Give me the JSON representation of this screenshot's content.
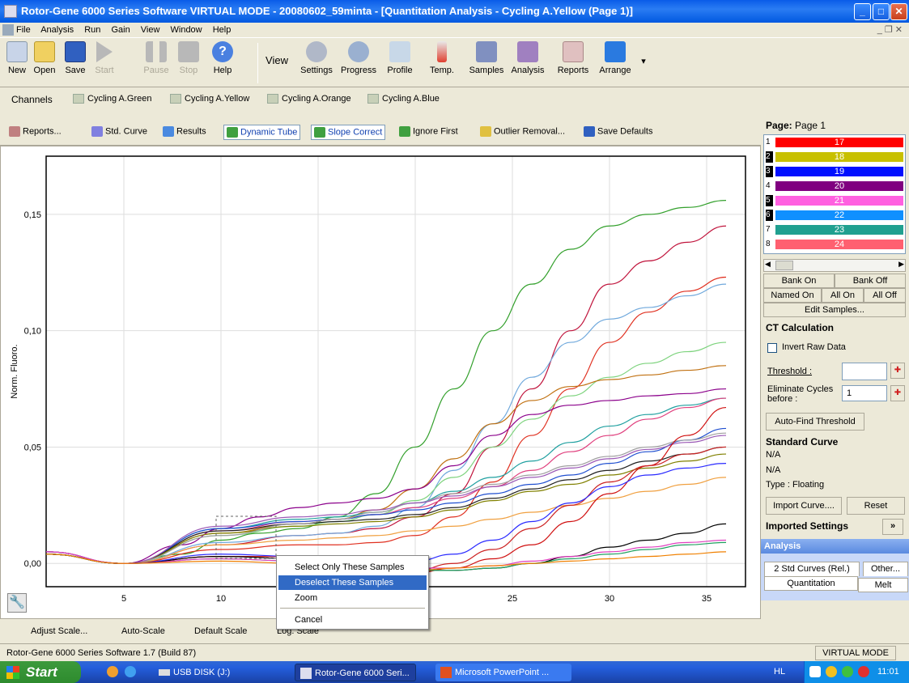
{
  "window": {
    "title": "Rotor-Gene 6000 Series Software VIRTUAL MODE - 20080602_59minta - [Quantitation Analysis - Cycling A.Yellow (Page 1)]"
  },
  "menu": [
    "File",
    "Analysis",
    "Run",
    "Gain",
    "View",
    "Window",
    "Help"
  ],
  "toolbar": {
    "new": "New",
    "open": "Open",
    "save": "Save",
    "start": "Start",
    "pause": "Pause",
    "stop": "Stop",
    "help": "Help",
    "view": "View",
    "settings": "Settings",
    "progress": "Progress",
    "profile": "Profile",
    "temp": "Temp.",
    "samples": "Samples",
    "analysis": "Analysis",
    "reports": "Reports",
    "arrange": "Arrange"
  },
  "channels": {
    "label": "Channels",
    "items": [
      "Cycling A.Green",
      "Cycling A.Yellow",
      "Cycling A.Orange",
      "Cycling A.Blue"
    ]
  },
  "analysis_toolbar": {
    "reports": "Reports...",
    "std_curve": "Std. Curve",
    "results": "Results",
    "dynamic_tube": "Dynamic Tube",
    "slope_correct": "Slope Correct",
    "ignore_first": "Ignore First",
    "outlier_removal": "Outlier Removal...",
    "save_defaults": "Save Defaults"
  },
  "chart_data": {
    "type": "line",
    "ylabel": "Norm. Fluoro.",
    "xlim": [
      1,
      37
    ],
    "ylim": [
      -0.01,
      0.175
    ],
    "x_ticks": [
      "5",
      "10",
      "15",
      "20",
      "25",
      "30",
      "35"
    ],
    "y_ticks": [
      "0,00",
      "0,05",
      "0,10",
      "0,15"
    ],
    "grid": true,
    "series": [
      {
        "color": "#33a02c",
        "x": [
          1,
          5,
          8,
          10,
          12,
          14,
          16,
          18,
          20,
          22,
          24,
          26,
          28,
          30,
          32,
          34,
          36
        ],
        "y": [
          0.005,
          0.0,
          0.004,
          0.01,
          0.013,
          0.015,
          0.02,
          0.03,
          0.05,
          0.075,
          0.1,
          0.12,
          0.135,
          0.145,
          0.15,
          0.153,
          0.156
        ]
      },
      {
        "color": "#c0143c",
        "x": [
          1,
          5,
          10,
          14,
          16,
          18,
          20,
          22,
          24,
          26,
          28,
          30,
          32,
          34,
          36
        ],
        "y": [
          0.004,
          0.0,
          0.008,
          0.012,
          0.013,
          0.015,
          0.02,
          0.03,
          0.05,
          0.075,
          0.1,
          0.12,
          0.13,
          0.138,
          0.145
        ]
      },
      {
        "color": "#e03020",
        "x": [
          1,
          5,
          10,
          14,
          16,
          18,
          20,
          22,
          24,
          26,
          28,
          30,
          32,
          34,
          36
        ],
        "y": [
          0.004,
          0.0,
          0.006,
          0.008,
          0.008,
          0.009,
          0.012,
          0.02,
          0.035,
          0.055,
          0.075,
          0.095,
          0.108,
          0.117,
          0.123
        ]
      },
      {
        "color": "#6fa8dc",
        "x": [
          1,
          5,
          10,
          14,
          16,
          18,
          20,
          22,
          24,
          26,
          28,
          30,
          32,
          34,
          36
        ],
        "y": [
          0.004,
          0.0,
          0.009,
          0.012,
          0.013,
          0.016,
          0.024,
          0.04,
          0.06,
          0.08,
          0.095,
          0.105,
          0.11,
          0.115,
          0.12
        ]
      },
      {
        "color": "#7dd37d",
        "x": [
          1,
          5,
          10,
          14,
          16,
          18,
          20,
          22,
          24,
          26,
          28,
          30,
          32,
          34,
          36
        ],
        "y": [
          0.004,
          0.0,
          0.012,
          0.016,
          0.018,
          0.021,
          0.027,
          0.037,
          0.05,
          0.062,
          0.072,
          0.08,
          0.086,
          0.091,
          0.095
        ]
      },
      {
        "color": "#c07010",
        "x": [
          1,
          5,
          10,
          14,
          16,
          18,
          20,
          22,
          24,
          26,
          28,
          30,
          32,
          34,
          36
        ],
        "y": [
          0.005,
          0.0,
          0.013,
          0.017,
          0.019,
          0.023,
          0.032,
          0.045,
          0.06,
          0.07,
          0.076,
          0.079,
          0.081,
          0.083,
          0.085
        ]
      },
      {
        "color": "#8b008b",
        "x": [
          1,
          5,
          8,
          10,
          12,
          14,
          16,
          18,
          20,
          22,
          24,
          26,
          28,
          30,
          32,
          34,
          36
        ],
        "y": [
          0.004,
          0.0,
          0.008,
          0.015,
          0.02,
          0.024,
          0.026,
          0.028,
          0.032,
          0.042,
          0.055,
          0.064,
          0.068,
          0.07,
          0.072,
          0.073,
          0.075
        ]
      },
      {
        "color": "#20a0a0",
        "x": [
          1,
          5,
          10,
          14,
          16,
          18,
          20,
          22,
          24,
          26,
          28,
          30,
          32,
          34,
          36
        ],
        "y": [
          0.004,
          0.0,
          0.015,
          0.019,
          0.02,
          0.022,
          0.026,
          0.031,
          0.037,
          0.044,
          0.052,
          0.059,
          0.064,
          0.068,
          0.071
        ]
      },
      {
        "color": "#e0407e",
        "x": [
          1,
          5,
          10,
          14,
          16,
          18,
          20,
          22,
          24,
          26,
          28,
          30,
          32,
          34,
          36
        ],
        "y": [
          0.005,
          0.0,
          0.014,
          0.018,
          0.019,
          0.021,
          0.024,
          0.028,
          0.033,
          0.04,
          0.048,
          0.055,
          0.062,
          0.067,
          0.071
        ]
      },
      {
        "color": "#1f4fd0",
        "x": [
          1,
          5,
          10,
          14,
          16,
          18,
          20,
          22,
          24,
          26,
          28,
          30,
          32,
          34,
          36
        ],
        "y": [
          0.005,
          0.0,
          0.015,
          0.018,
          0.019,
          0.021,
          0.023,
          0.026,
          0.03,
          0.034,
          0.038,
          0.043,
          0.048,
          0.053,
          0.058
        ]
      },
      {
        "color": "#222222",
        "x": [
          1,
          5,
          10,
          14,
          16,
          18,
          20,
          22,
          24,
          26,
          28,
          30,
          32,
          34,
          36
        ],
        "y": [
          0.004,
          0.0,
          0.014,
          0.017,
          0.018,
          0.019,
          0.021,
          0.024,
          0.028,
          0.032,
          0.036,
          0.04,
          0.044,
          0.047,
          0.05
        ]
      },
      {
        "color": "#808000",
        "x": [
          1,
          5,
          10,
          14,
          16,
          18,
          20,
          22,
          24,
          26,
          28,
          30,
          32,
          34,
          36
        ],
        "y": [
          0.004,
          0.0,
          0.013,
          0.016,
          0.017,
          0.018,
          0.02,
          0.023,
          0.027,
          0.031,
          0.034,
          0.038,
          0.041,
          0.044,
          0.047
        ]
      },
      {
        "color": "#a0a0a0",
        "x": [
          1,
          5,
          10,
          14,
          16,
          18,
          20,
          22,
          24,
          26,
          28,
          30,
          32,
          34,
          36
        ],
        "y": [
          0.004,
          0.0,
          0.012,
          0.017,
          0.019,
          0.022,
          0.026,
          0.03,
          0.034,
          0.038,
          0.042,
          0.046,
          0.05,
          0.053,
          0.056
        ]
      },
      {
        "color": "#f0a040",
        "x": [
          1,
          5,
          10,
          14,
          16,
          18,
          20,
          22,
          24,
          26,
          28,
          30,
          32,
          34,
          36
        ],
        "y": [
          0.004,
          0.0,
          0.008,
          0.01,
          0.011,
          0.012,
          0.014,
          0.016,
          0.019,
          0.022,
          0.025,
          0.028,
          0.031,
          0.034,
          0.037
        ]
      },
      {
        "color": "#9b59b6",
        "x": [
          1,
          5,
          10,
          14,
          16,
          18,
          20,
          22,
          24,
          26,
          28,
          30,
          32,
          34,
          36
        ],
        "y": [
          0.005,
          0.0,
          0.016,
          0.02,
          0.021,
          0.023,
          0.026,
          0.029,
          0.033,
          0.037,
          0.041,
          0.045,
          0.049,
          0.052,
          0.055
        ]
      },
      {
        "color": "#d01010",
        "x": [
          1,
          5,
          10,
          14,
          16,
          18,
          20,
          22,
          24,
          26,
          28,
          30,
          32,
          34,
          36
        ],
        "y": [
          0.004,
          0.0,
          0.003,
          0.003,
          0.0,
          -0.003,
          -0.004,
          -0.002,
          0.002,
          0.008,
          0.018,
          0.03,
          0.042,
          0.055,
          0.067
        ]
      },
      {
        "color": "#cc2222",
        "x": [
          1,
          5,
          10,
          14,
          16,
          18,
          20,
          22,
          24,
          26,
          28,
          30,
          32,
          34,
          36
        ],
        "y": [
          0.004,
          0.0,
          0.003,
          0.003,
          0.001,
          -0.002,
          -0.003,
          0.0,
          0.006,
          0.015,
          0.025,
          0.035,
          0.042,
          0.047,
          0.05
        ]
      },
      {
        "color": "#2a2aff",
        "x": [
          1,
          5,
          10,
          14,
          16,
          18,
          20,
          22,
          24,
          26,
          28,
          30,
          32,
          34,
          36
        ],
        "y": [
          0.004,
          0.0,
          0.004,
          0.003,
          0.001,
          0.0,
          0.001,
          0.004,
          0.01,
          0.018,
          0.026,
          0.033,
          0.038,
          0.041,
          0.043
        ]
      },
      {
        "color": "#000000",
        "x": [
          1,
          5,
          10,
          14,
          16,
          18,
          20,
          22,
          24,
          26,
          28,
          30,
          32,
          34,
          36
        ],
        "y": [
          0.004,
          0.0,
          0.003,
          0.002,
          0.0,
          -0.002,
          -0.003,
          -0.003,
          -0.002,
          0.0,
          0.003,
          0.007,
          0.01,
          0.013,
          0.017
        ]
      },
      {
        "color": "#20a060",
        "x": [
          1,
          5,
          10,
          14,
          16,
          18,
          20,
          22,
          24,
          26,
          28,
          30,
          32,
          34,
          36
        ],
        "y": [
          0.004,
          0.0,
          0.002,
          0.001,
          -0.001,
          -0.002,
          -0.003,
          -0.003,
          -0.002,
          0.0,
          0.002,
          0.004,
          0.006,
          0.008,
          0.009
        ]
      },
      {
        "color": "#e040c0",
        "x": [
          1,
          5,
          10,
          14,
          16,
          18,
          20,
          22,
          24,
          26,
          28,
          30,
          32,
          34,
          36
        ],
        "y": [
          0.005,
          0.0,
          0.002,
          0.001,
          0.0,
          -0.001,
          -0.002,
          -0.002,
          -0.001,
          0.001,
          0.003,
          0.005,
          0.007,
          0.009,
          0.01
        ]
      },
      {
        "color": "#f08000",
        "x": [
          1,
          5,
          10,
          14,
          16,
          18,
          20,
          22,
          24,
          26,
          28,
          30,
          32,
          34,
          36
        ],
        "y": [
          0.004,
          0.0,
          0.001,
          0.0,
          -0.001,
          -0.002,
          -0.003,
          -0.002,
          -0.001,
          0.0,
          0.001,
          0.002,
          0.003,
          0.004,
          0.005
        ]
      }
    ]
  },
  "scale_bar": {
    "adjust": "Adjust Scale...",
    "auto": "Auto-Scale",
    "default": "Default Scale",
    "log": "Log. Scale"
  },
  "context_menu": {
    "items": [
      "Select Only These Samples",
      "Deselect These Samples",
      "Zoom",
      "Cancel"
    ],
    "highlighted": 1
  },
  "right_panel": {
    "page_label": "Page:",
    "page_value": "Page 1",
    "samples": [
      {
        "num": "1",
        "label": "17",
        "color": "#ff0000"
      },
      {
        "num": "2",
        "label": "18",
        "color": "#c8c000"
      },
      {
        "num": "3",
        "label": "19",
        "color": "#0010ff"
      },
      {
        "num": "4",
        "label": "20",
        "color": "#800080"
      },
      {
        "num": "5",
        "label": "21",
        "color": "#ff60e0"
      },
      {
        "num": "6",
        "label": "22",
        "color": "#1090ff"
      },
      {
        "num": "7",
        "label": "23",
        "color": "#20a090"
      },
      {
        "num": "8",
        "label": "24",
        "color": "#ff6070"
      }
    ],
    "bank_on": "Bank On",
    "bank_off": "Bank Off",
    "named_on": "Named On",
    "all_on": "All On",
    "all_off": "All Off",
    "edit_samples": "Edit Samples...",
    "ct_header": "CT Calculation",
    "invert_raw": "Invert Raw Data",
    "threshold_label": "Threshold :",
    "threshold_value": "",
    "eliminate_label_1": "Eliminate Cycles",
    "eliminate_label_2": "before :",
    "eliminate_value": "1",
    "auto_find": "Auto-Find Threshold",
    "std_header": "Standard Curve",
    "std_na1": "N/A",
    "std_na2": "N/A",
    "std_type": "Type : Floating",
    "import_curve": "Import Curve....",
    "reset": "Reset",
    "imported_header": "Imported Settings",
    "analysis_header": "Analysis",
    "tab_2std": "2 Std Curves (Rel.)",
    "tab_other": "Other...",
    "tab_quant": "Quantitation",
    "tab_melt": "Melt"
  },
  "status": {
    "text": "Rotor-Gene 6000 Series Software 1.7 (Build 87)",
    "mode": "VIRTUAL MODE"
  },
  "taskbar": {
    "start": "Start",
    "tasks": [
      "USB DISK (J:)",
      "Rotor-Gene 6000 Seri...",
      "Microsoft PowerPoint ..."
    ],
    "lang": "HL",
    "clock": "11:01"
  }
}
